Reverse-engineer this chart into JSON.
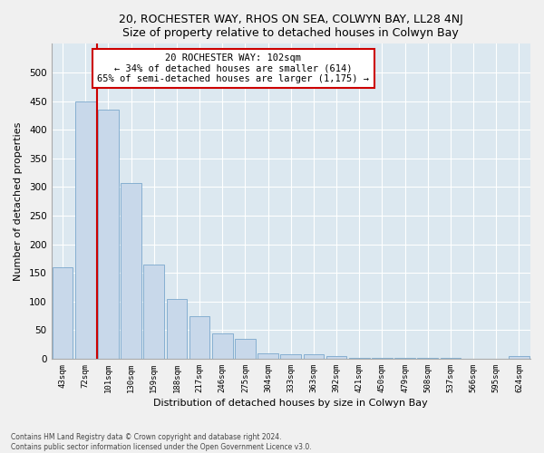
{
  "title1": "20, ROCHESTER WAY, RHOS ON SEA, COLWYN BAY, LL28 4NJ",
  "title2": "Size of property relative to detached houses in Colwyn Bay",
  "xlabel": "Distribution of detached houses by size in Colwyn Bay",
  "ylabel": "Number of detached properties",
  "categories": [
    "43sqm",
    "72sqm",
    "101sqm",
    "130sqm",
    "159sqm",
    "188sqm",
    "217sqm",
    "246sqm",
    "275sqm",
    "304sqm",
    "333sqm",
    "363sqm",
    "392sqm",
    "421sqm",
    "450sqm",
    "479sqm",
    "508sqm",
    "537sqm",
    "566sqm",
    "595sqm",
    "624sqm"
  ],
  "values": [
    160,
    450,
    435,
    307,
    165,
    105,
    75,
    45,
    35,
    10,
    8,
    8,
    4,
    2,
    2,
    1,
    1,
    1,
    0,
    0,
    4
  ],
  "bar_color": "#c8d8ea",
  "bar_edge_color": "#7aa8cc",
  "vline_x": 1.5,
  "vline_color": "#cc0000",
  "annotation_line1": "20 ROCHESTER WAY: 102sqm",
  "annotation_line2": "← 34% of detached houses are smaller (614)",
  "annotation_line3": "65% of semi-detached houses are larger (1,175) →",
  "annotation_box_color": "white",
  "annotation_box_edge_color": "#cc0000",
  "ylim": [
    0,
    550
  ],
  "yticks": [
    0,
    50,
    100,
    150,
    200,
    250,
    300,
    350,
    400,
    450,
    500
  ],
  "footer": "Contains HM Land Registry data © Crown copyright and database right 2024.\nContains public sector information licensed under the Open Government Licence v3.0.",
  "bg_color": "#f0f0f0",
  "plot_bg_color": "#dce8f0"
}
